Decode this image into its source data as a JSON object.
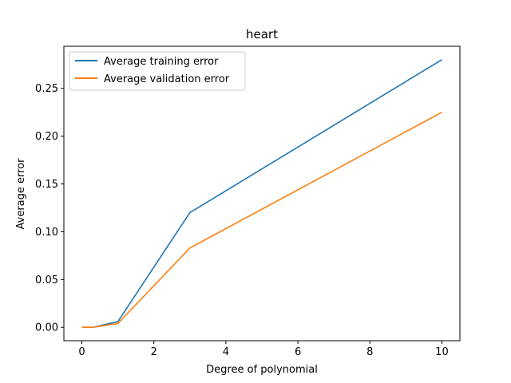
{
  "chart_data": {
    "type": "line",
    "title": "heart",
    "xlabel": "Degree of polynomial",
    "ylabel": "Average error",
    "xlim": [
      -0.5,
      10.5
    ],
    "ylim": [
      -0.014,
      0.294
    ],
    "xticks": [
      0,
      2,
      4,
      6,
      8,
      10
    ],
    "xtick_labels": [
      "0",
      "2",
      "4",
      "6",
      "8",
      "10"
    ],
    "yticks": [
      0.0,
      0.05,
      0.1,
      0.15,
      0.2,
      0.25
    ],
    "ytick_labels": [
      "0.00",
      "0.05",
      "0.10",
      "0.15",
      "0.20",
      "0.25"
    ],
    "grid": false,
    "legend_position": "top-left",
    "x": [
      0,
      0.3,
      1,
      3,
      10
    ],
    "series": [
      {
        "name": "Average training error",
        "color": "#1f77b4",
        "values": [
          0.0,
          0.0,
          0.006,
          0.12,
          0.28
        ]
      },
      {
        "name": "Average validation error",
        "color": "#ff7f0e",
        "values": [
          0.0,
          0.0,
          0.004,
          0.083,
          0.225
        ]
      }
    ]
  }
}
